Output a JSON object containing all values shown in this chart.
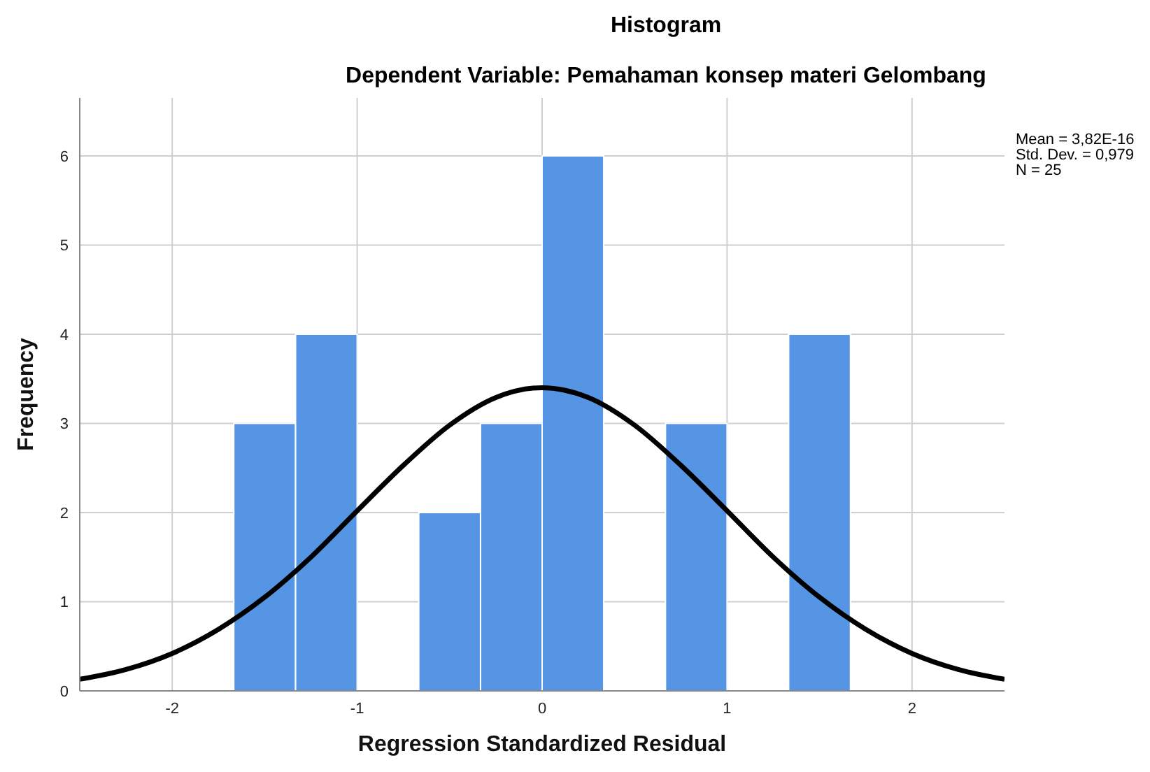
{
  "chart_data": {
    "type": "histogram",
    "title": "Histogram",
    "subtitle": "Dependent Variable: Pemahaman konsep materi Gelombang",
    "xlabel": "Regression Standardized Residual",
    "ylabel": "Frequency",
    "series": [
      {
        "color": "#5595e3",
        "bins": [
          -1.667,
          -1.333,
          -1,
          -0.667,
          -0.333,
          0,
          0.333,
          0.667,
          1,
          1.333,
          1.667
        ],
        "values": [
          3,
          4,
          0,
          2,
          3,
          6,
          0,
          3,
          0,
          4
        ]
      },
      {
        "type": "line",
        "color": "#000000",
        "x": [
          -2.5,
          -2.25,
          -2,
          -1.75,
          -1.5,
          -1.25,
          -1,
          -0.75,
          -0.5,
          -0.25,
          0,
          0.25,
          0.5,
          0.75,
          1,
          1.25,
          1.5,
          1.75,
          2,
          2.25,
          2.5
        ],
        "values": [
          0.13,
          0.24,
          0.42,
          0.69,
          1.05,
          1.5,
          2.02,
          2.53,
          2.98,
          3.29,
          3.4,
          3.29,
          2.98,
          2.53,
          2.02,
          1.5,
          1.05,
          0.69,
          0.42,
          0.24,
          0.13
        ]
      }
    ],
    "xlim": [
      -2.5,
      2.5
    ],
    "xticks": [
      -2,
      -1,
      0,
      1,
      2
    ],
    "ylim": [
      0,
      6.65
    ],
    "yticks": [
      0,
      1,
      2,
      3,
      4,
      5,
      6
    ],
    "grid": true,
    "marker": "none",
    "line_style": "solid",
    "annotations": [
      "Mean = 3,82E-16",
      "Std. Dev. = 0,979",
      "N = 25"
    ]
  }
}
